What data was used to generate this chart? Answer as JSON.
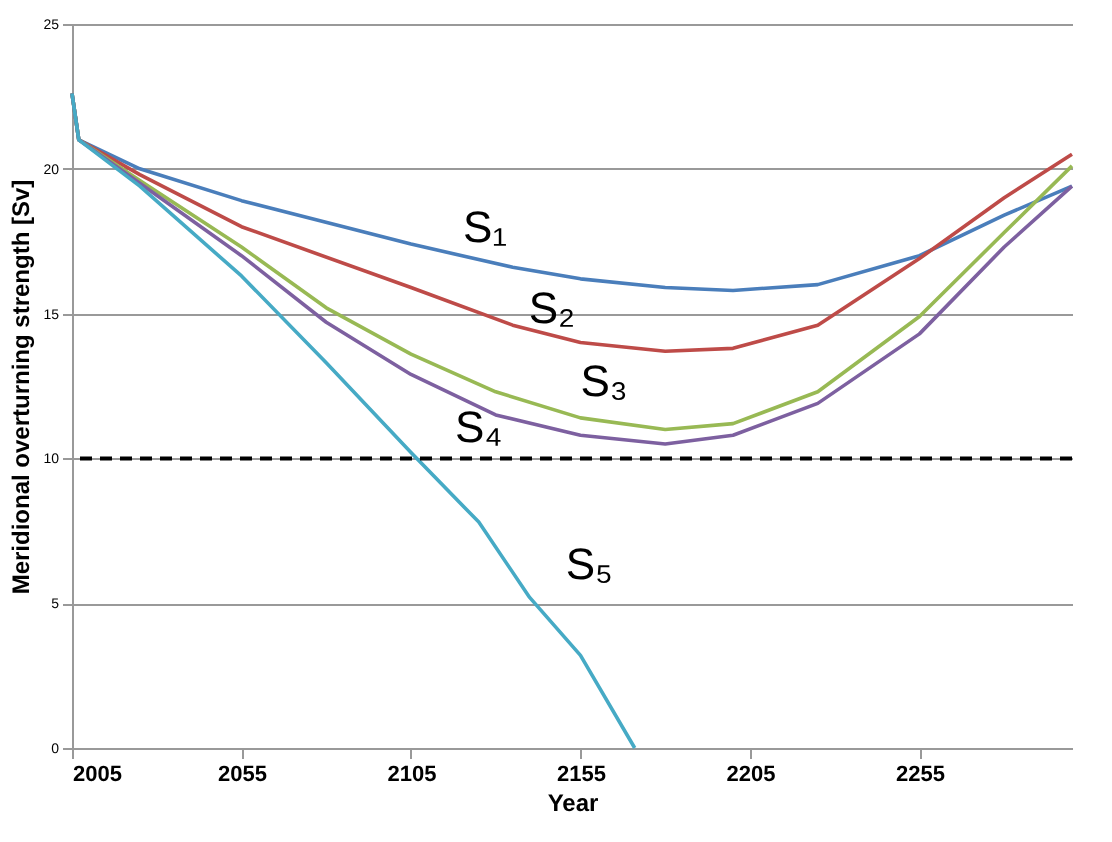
{
  "chart_data": {
    "type": "line",
    "xlabel": "Year",
    "ylabel": "Meridional overturning strength [Sv]",
    "xlim": [
      2005,
      2300
    ],
    "xticks": [
      2005,
      2055,
      2105,
      2155,
      2205,
      2255
    ],
    "ylim": [
      0,
      25
    ],
    "yticks": [
      0,
      5,
      10,
      15,
      20,
      25
    ],
    "grid": "y",
    "marker": "none",
    "line_style": "solid",
    "series": [
      {
        "name": "S₁",
        "color": "#4a7ebb",
        "x": [
          2005,
          2007,
          2025,
          2055,
          2105,
          2135,
          2155,
          2180,
          2200,
          2225,
          2255,
          2280,
          2300
        ],
        "values": [
          22.6,
          21.0,
          20.0,
          18.9,
          17.4,
          16.6,
          16.2,
          15.9,
          15.8,
          16.0,
          17.0,
          18.4,
          19.4
        ]
      },
      {
        "name": "S₂",
        "color": "#be4b48",
        "x": [
          2005,
          2007,
          2025,
          2055,
          2105,
          2135,
          2155,
          2180,
          2200,
          2225,
          2255,
          2280,
          2300
        ],
        "values": [
          22.6,
          21.0,
          19.8,
          18.0,
          15.9,
          14.6,
          14.0,
          13.7,
          13.8,
          14.6,
          16.9,
          19.0,
          20.5
        ]
      },
      {
        "name": "S₃",
        "color": "#98b954",
        "x": [
          2005,
          2007,
          2025,
          2055,
          2080,
          2105,
          2130,
          2155,
          2180,
          2200,
          2225,
          2255,
          2280,
          2300
        ],
        "values": [
          22.6,
          21.0,
          19.6,
          17.3,
          15.2,
          13.6,
          12.3,
          11.4,
          11.0,
          11.2,
          12.3,
          14.9,
          17.8,
          20.1
        ]
      },
      {
        "name": "S₄",
        "color": "#7d60a0",
        "x": [
          2005,
          2007,
          2025,
          2055,
          2080,
          2105,
          2130,
          2155,
          2180,
          2200,
          2225,
          2255,
          2280,
          2300
        ],
        "values": [
          22.6,
          21.0,
          19.5,
          17.0,
          14.7,
          12.9,
          11.5,
          10.8,
          10.5,
          10.8,
          11.9,
          14.3,
          17.3,
          19.4
        ]
      },
      {
        "name": "S₅",
        "color": "#46aac5",
        "x": [
          2005,
          2007,
          2025,
          2055,
          2080,
          2105,
          2125,
          2140,
          2155,
          2171
        ],
        "values": [
          22.6,
          21.0,
          19.4,
          16.3,
          13.3,
          10.2,
          7.8,
          5.2,
          3.2,
          0
        ]
      }
    ],
    "ref_lines": [
      {
        "axis": "y",
        "value": 10,
        "color": "#000000",
        "line_style": "dashed"
      }
    ]
  }
}
